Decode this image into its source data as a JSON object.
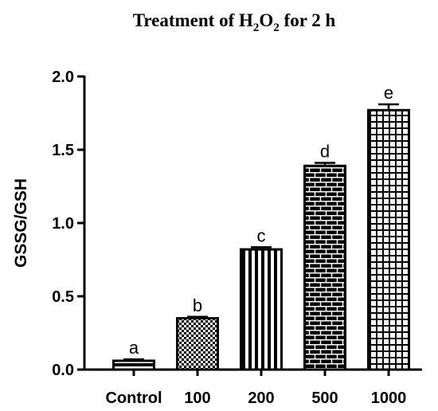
{
  "chart_data": {
    "type": "bar",
    "title": {
      "prefix": "Treatment of H",
      "sub1": "2",
      "mid": "O",
      "sub2": "2",
      "suffix": " for 2 h"
    },
    "xlabel": "",
    "ylabel": "GSSG/GSH",
    "ylim": [
      0,
      2.0
    ],
    "yticks": [
      "0.0",
      "0.5",
      "1.0",
      "1.5",
      "2.0"
    ],
    "categories": [
      "Control",
      "100",
      "200",
      "500",
      "1000"
    ],
    "values": [
      0.06,
      0.35,
      0.82,
      1.39,
      1.77
    ],
    "errors": [
      0.01,
      0.01,
      0.015,
      0.02,
      0.04
    ],
    "significance": [
      "a",
      "b",
      "c",
      "d",
      "e"
    ],
    "patterns": [
      "horizontal-stripes",
      "checkerboard",
      "vertical-stripes",
      "brick",
      "grid"
    ],
    "bar_color": "#000000",
    "grid": false,
    "legend": "none"
  }
}
